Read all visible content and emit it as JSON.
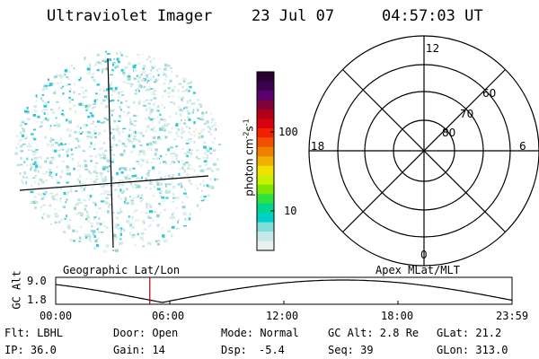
{
  "header": {
    "instrument": "Ultraviolet Imager",
    "date": "23 Jul 07",
    "time": "04:57:03 UT"
  },
  "colorbar": {
    "label": "photon cm^-2 s^-1",
    "ticks": [
      "100",
      "10"
    ],
    "colors": [
      "#2a0030",
      "#3b0050",
      "#5a0070",
      "#80003a",
      "#b00018",
      "#d80010",
      "#f02000",
      "#f05000",
      "#f08000",
      "#f0b000",
      "#f0e000",
      "#c8f000",
      "#80e800",
      "#30e040",
      "#00d890",
      "#00d0c8",
      "#80dcd8",
      "#c8e8e8",
      "#e8f0f0"
    ]
  },
  "polar": {
    "mlt_labels": [
      "12",
      "18",
      "6",
      "0"
    ],
    "mlat_labels": [
      "60",
      "70",
      "80"
    ]
  },
  "panel_labels": {
    "geographic": "Geographic Lat/Lon",
    "apex": "Apex MLat/MLT"
  },
  "alt_plot": {
    "axis_label": "GC Alt",
    "y_ticks": [
      "9.0",
      "1.8"
    ],
    "x_ticks": [
      "00:00",
      "06:00",
      "12:00",
      "18:00",
      "23:59"
    ],
    "current_time_hours": 4.95,
    "marker_color": "#b00000"
  },
  "info": {
    "flt": "Flt: LBHL",
    "door": "Door: Open",
    "mode": "Mode: Normal",
    "gcalt": "GC Alt: 2.8 Re",
    "glat": "GLat:  21.2",
    "ip": "IP: 36.0",
    "gain": "Gain: 14",
    "dsp_label": "Dsp:",
    "dsp_value": "-5.4",
    "seq": "Seq: 39",
    "glon": "GLon: 313.0"
  }
}
